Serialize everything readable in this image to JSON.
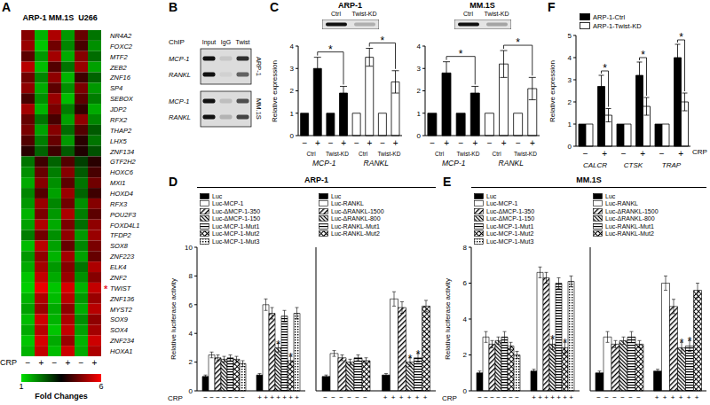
{
  "chart_data": [
    {
      "panel": "A",
      "type": "heatmap",
      "column_groups": [
        "ARP-1",
        "MM.1S",
        "U266"
      ],
      "columns": [
        "−",
        "+",
        "−",
        "+",
        "−",
        "+"
      ],
      "x_label": "CRP",
      "rows": [
        "NR4A2",
        "FOXC2",
        "MTF2",
        "ZEB2",
        "ZNF16",
        "SP4",
        "SEBOX",
        "JDP2",
        "RFX2",
        "THAP2",
        "LHX5",
        "ZNF134",
        "GTF2H2",
        "HOXC6",
        "MXI1",
        "HOXD4",
        "RFX3",
        "POU2F3",
        "FOXD4L1",
        "TFDP2",
        "SOX8",
        "ZNF223",
        "ELK4",
        "ZNF2",
        "TWIST",
        "ZNF136",
        "MYST2",
        "SOX9",
        "SOX4",
        "ZNF234",
        "HOXA1"
      ],
      "cells": [
        [
          4.8,
          1.5,
          5.2,
          1.8,
          4.5,
          2.2
        ],
        [
          5.0,
          1.3,
          4.6,
          2.0,
          4.2,
          1.9
        ],
        [
          4.4,
          1.8,
          5.1,
          1.6,
          4.8,
          2.3
        ],
        [
          5.3,
          1.4,
          4.3,
          2.2,
          5.0,
          1.7
        ],
        [
          4.6,
          2.0,
          4.9,
          1.5,
          4.1,
          2.4
        ],
        [
          4.9,
          1.6,
          4.4,
          1.9,
          4.7,
          1.8
        ],
        [
          4.2,
          1.9,
          5.0,
          1.4,
          4.4,
          2.1
        ],
        [
          5.1,
          1.5,
          4.7,
          2.1,
          4.0,
          1.6
        ],
        [
          4.5,
          2.2,
          4.2,
          1.7,
          4.9,
          2.0
        ],
        [
          4.7,
          1.7,
          4.8,
          2.3,
          4.3,
          2.5
        ],
        [
          4.3,
          2.1,
          4.5,
          1.8,
          3.9,
          2.2
        ],
        [
          3.9,
          2.4,
          4.1,
          2.5,
          3.8,
          2.6
        ],
        [
          2.2,
          4.1,
          2.4,
          4.3,
          2.8,
          3.9
        ],
        [
          1.9,
          4.5,
          2.1,
          4.8,
          2.5,
          4.2
        ],
        [
          1.6,
          4.8,
          1.9,
          4.4,
          2.2,
          4.6
        ],
        [
          2.0,
          4.3,
          1.7,
          5.0,
          2.4,
          4.1
        ],
        [
          1.8,
          5.0,
          2.0,
          4.6,
          1.9,
          4.8
        ],
        [
          1.5,
          4.7,
          1.8,
          5.2,
          2.1,
          4.4
        ],
        [
          1.7,
          5.2,
          1.6,
          4.7,
          2.3,
          4.9
        ],
        [
          2.1,
          4.6,
          1.9,
          4.9,
          1.8,
          5.0
        ],
        [
          1.4,
          5.3,
          1.7,
          4.5,
          2.0,
          4.7
        ],
        [
          1.8,
          4.9,
          1.5,
          5.1,
          1.7,
          4.5
        ],
        [
          1.6,
          5.1,
          1.8,
          4.8,
          2.2,
          5.2
        ],
        [
          1.3,
          5.4,
          1.6,
          5.0,
          1.9,
          4.8
        ],
        [
          1.2,
          5.8,
          1.3,
          5.6,
          1.5,
          5.4
        ],
        [
          1.5,
          5.2,
          1.4,
          5.3,
          1.8,
          5.0
        ],
        [
          1.7,
          5.0,
          1.6,
          4.9,
          1.6,
          5.3
        ],
        [
          1.4,
          5.5,
          1.5,
          5.2,
          1.9,
          4.9
        ],
        [
          1.6,
          5.3,
          1.3,
          5.4,
          1.7,
          5.1
        ],
        [
          1.3,
          5.6,
          1.6,
          5.0,
          1.5,
          5.5
        ],
        [
          1.5,
          5.4,
          1.4,
          5.5,
          1.6,
          5.2
        ]
      ],
      "annotations": [
        {
          "text": "*",
          "row": "TWIST",
          "color": "#e8192c"
        }
      ],
      "colorbar": {
        "range": [
          1,
          6
        ],
        "ticks": [
          1,
          6
        ],
        "label": "Fold Changes",
        "colors": [
          "#00e000",
          "#000000",
          "#ff0000"
        ]
      }
    },
    {
      "panel": "B",
      "type": "gel",
      "lane_header": "ChIP",
      "lanes": [
        "Input",
        "IgG",
        "Twist"
      ],
      "blots": [
        {
          "label": "ARP-1",
          "rows": [
            "MCP-1",
            "RANKL"
          ],
          "band_intensity": [
            [
              1,
              0.1,
              0.85
            ],
            [
              1,
              0.05,
              0.6
            ]
          ]
        },
        {
          "label": "MM.1S",
          "rows": [
            "MCP-1",
            "RANKL"
          ],
          "band_intensity": [
            [
              1,
              0.15,
              0.7
            ],
            [
              1,
              0.2,
              0.75
            ]
          ]
        }
      ]
    },
    {
      "panel": "C",
      "type": "bar",
      "title": "ARP-1",
      "blot": {
        "labels": [
          "Ctrl",
          "Twist-KD"
        ],
        "band_intensity": [
          1,
          0.25
        ]
      },
      "categories": [
        "−",
        "+",
        "−",
        "+",
        "−",
        "+",
        "−",
        "+"
      ],
      "groups": [
        "Ctrl",
        "Twist-KD",
        "Ctrl",
        "Twist-KD"
      ],
      "genes": [
        "MCP-1",
        "RANKL"
      ],
      "values": [
        1,
        3.0,
        1,
        1.9,
        1,
        3.5,
        1,
        2.4
      ],
      "errors": [
        0,
        0.5,
        0,
        0.3,
        0,
        0.4,
        0,
        0.5
      ],
      "colors": [
        "#000000",
        "#000000",
        "#000000",
        "#000000",
        "#ffffff",
        "#ffffff",
        "#ffffff",
        "#ffffff"
      ],
      "ylim": [
        0,
        4
      ],
      "yticks": [
        0,
        1,
        2,
        3,
        4
      ],
      "y_label": "Relative expression",
      "comparisons": [
        {
          "between": [
            1,
            3
          ],
          "label": "*"
        },
        {
          "between": [
            5,
            7
          ],
          "label": "*"
        }
      ]
    },
    {
      "type": "bar",
      "title": "MM.1S",
      "blot": {
        "labels": [
          "Ctrl",
          "Twist-KD"
        ],
        "band_intensity": [
          1,
          0.3
        ]
      },
      "categories": [
        "−",
        "+",
        "−",
        "+",
        "−",
        "+",
        "−",
        "+"
      ],
      "groups": [
        "Ctrl",
        "Twist-KD",
        "Ctrl",
        "Twist-KD"
      ],
      "genes": [
        "MCP-1",
        "RANKL"
      ],
      "values": [
        1,
        2.8,
        1,
        1.9,
        1,
        3.2,
        1,
        2.1
      ],
      "errors": [
        0,
        0.5,
        0,
        0.3,
        0,
        0.6,
        0,
        0.5
      ],
      "colors": [
        "#000000",
        "#000000",
        "#000000",
        "#000000",
        "#ffffff",
        "#ffffff",
        "#ffffff",
        "#ffffff"
      ],
      "ylim": [
        0,
        4
      ],
      "yticks": [
        0,
        1,
        2,
        3,
        4
      ],
      "comparisons": [
        {
          "between": [
            1,
            3
          ],
          "label": "*"
        },
        {
          "between": [
            5,
            7
          ],
          "label": "*"
        }
      ]
    },
    {
      "panel": "D",
      "type": "bar",
      "title": "ARP-1",
      "x_label": "CRP",
      "y_label": "Relative luciferase activity",
      "categories": [
        "−",
        "+"
      ],
      "ylim": [
        0,
        10
      ],
      "yticks": [
        0,
        2,
        4,
        6,
        8,
        10
      ],
      "subplots": [
        {
          "series": [
            {
              "name": "Luc",
              "values": [
                1,
                1.1
              ],
              "errors": [
                0.1,
                0.1
              ]
            },
            {
              "name": "Luc-MCP-1",
              "values": [
                2.5,
                6.0
              ],
              "errors": [
                0.2,
                0.4
              ]
            },
            {
              "name": "Luc-ΔMCP-1-350",
              "values": [
                2.3,
                5.4
              ],
              "errors": [
                0.2,
                0.4
              ]
            },
            {
              "name": "Luc-ΔMCP-1-150",
              "values": [
                2.2,
                3.0
              ],
              "errors": [
                0.2,
                0.3
              ],
              "significance": [
                null,
                "*"
              ]
            },
            {
              "name": "Luc-MCP-1-Mut1",
              "values": [
                2.3,
                5.2
              ],
              "errors": [
                0.2,
                0.4
              ]
            },
            {
              "name": "Luc-MCP-1-Mut2",
              "values": [
                2.2,
                2.1
              ],
              "errors": [
                0.2,
                0.3
              ],
              "significance": [
                null,
                "*"
              ]
            },
            {
              "name": "Luc-MCP-1-Mut3",
              "values": [
                1.9,
                5.4
              ],
              "errors": [
                0.2,
                0.4
              ]
            }
          ]
        },
        {
          "series": [
            {
              "name": "Luc",
              "values": [
                1,
                1.1
              ],
              "errors": [
                0.1,
                0.1
              ]
            },
            {
              "name": "Luc-RANKL",
              "values": [
                2.6,
                6.4
              ],
              "errors": [
                0.2,
                0.5
              ]
            },
            {
              "name": "Luc-ΔRANKL-1500",
              "values": [
                2.3,
                5.8
              ],
              "errors": [
                0.2,
                0.4
              ]
            },
            {
              "name": "Luc-ΔRANKL-800",
              "values": [
                2.0,
                2.0
              ],
              "errors": [
                0.2,
                0.3
              ],
              "significance": [
                null,
                "*"
              ]
            },
            {
              "name": "Luc-RANKL-Mut1",
              "values": [
                2.3,
                2.3
              ],
              "errors": [
                0.2,
                0.3
              ],
              "significance": [
                null,
                "*"
              ]
            },
            {
              "name": "Luc-RANKL-Mut2",
              "values": [
                2.1,
                5.9
              ],
              "errors": [
                0.2,
                0.4
              ]
            }
          ]
        }
      ]
    },
    {
      "panel": "E",
      "type": "bar",
      "title": "MM.1S",
      "x_label": "CRP",
      "y_label": "Relative luciferase activity",
      "categories": [
        "−",
        "+"
      ],
      "ylim": [
        0,
        8
      ],
      "yticks": [
        0,
        2,
        4,
        6,
        8
      ],
      "subplots": [
        {
          "series": [
            {
              "name": "Luc",
              "values": [
                1,
                1.1
              ],
              "errors": [
                0.1,
                0.1
              ]
            },
            {
              "name": "Luc-MCP-1",
              "values": [
                3.0,
                6.6
              ],
              "errors": [
                0.3,
                0.3
              ]
            },
            {
              "name": "Luc-ΔMCP-1-350",
              "values": [
                2.6,
                6.3
              ],
              "errors": [
                0.2,
                0.3
              ]
            },
            {
              "name": "Luc-ΔMCP-1-150",
              "values": [
                2.8,
                2.6
              ],
              "errors": [
                0.2,
                0.3
              ],
              "significance": [
                null,
                "*"
              ]
            },
            {
              "name": "Luc-MCP-1-Mut1",
              "values": [
                3.0,
                6.0
              ],
              "errors": [
                0.3,
                0.3
              ]
            },
            {
              "name": "Luc-MCP-1-Mut2",
              "values": [
                2.5,
                2.4
              ],
              "errors": [
                0.2,
                0.3
              ],
              "significance": [
                null,
                "*"
              ]
            },
            {
              "name": "Luc-MCP-1-Mut3",
              "values": [
                2.0,
                6.1
              ],
              "errors": [
                0.2,
                0.3
              ]
            }
          ]
        },
        {
          "series": [
            {
              "name": "Luc",
              "values": [
                1,
                1.1
              ],
              "errors": [
                0.1,
                0.1
              ]
            },
            {
              "name": "Luc-RANKL",
              "values": [
                3.0,
                6.0
              ],
              "errors": [
                0.3,
                0.4
              ]
            },
            {
              "name": "Luc-ΔRANKL-1500",
              "values": [
                2.6,
                4.7
              ],
              "errors": [
                0.2,
                0.4
              ]
            },
            {
              "name": "Luc-ΔRANKL-800",
              "values": [
                2.8,
                2.4
              ],
              "errors": [
                0.2,
                0.3
              ],
              "significance": [
                null,
                "*"
              ]
            },
            {
              "name": "Luc-RANKL-Mut1",
              "values": [
                3.0,
                2.5
              ],
              "errors": [
                0.3,
                0.3
              ],
              "significance": [
                null,
                "*"
              ]
            },
            {
              "name": "Luc-RANKL-Mut2",
              "values": [
                2.6,
                5.6
              ],
              "errors": [
                0.2,
                0.4
              ]
            }
          ]
        }
      ]
    },
    {
      "panel": "F",
      "type": "bar",
      "categories": [
        "−",
        "+",
        "−",
        "+",
        "−",
        "+"
      ],
      "genes": [
        "CALCR",
        "CTSK",
        "TRAP"
      ],
      "x_label": "CRP",
      "y_label": "Relative expression",
      "ylim": [
        0,
        5
      ],
      "yticks": [
        0,
        1,
        2,
        3,
        4,
        5
      ],
      "legend": "top-left",
      "series": [
        {
          "name": "ARP-1-Ctrl",
          "color": "#000000",
          "values": [
            1,
            2.7,
            1,
            3.2,
            1,
            4.0
          ],
          "errors": [
            0,
            0.5,
            0,
            0.6,
            0,
            0.6
          ],
          "significance": [
            null,
            "*",
            null,
            "*",
            null,
            "*"
          ]
        },
        {
          "name": "ARP-1-Twist-KD",
          "color": "#ffffff",
          "values": [
            1,
            1.4,
            1,
            1.8,
            1,
            2.0
          ],
          "errors": [
            0,
            0.3,
            0,
            0.4,
            0,
            0.4
          ]
        }
      ]
    }
  ]
}
